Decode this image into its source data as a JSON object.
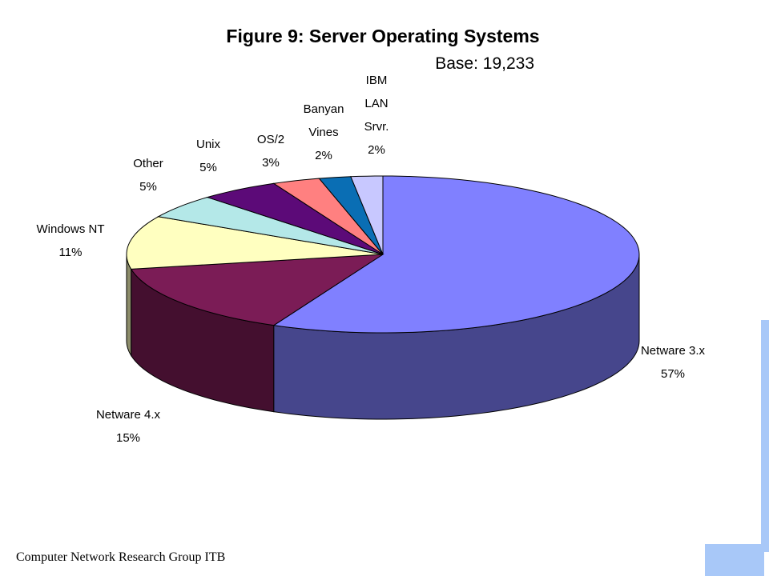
{
  "chart_data": {
    "type": "pie",
    "title": "Figure 9:  Server Operating Systems",
    "subtitle": "Base: 19,233",
    "categories": [
      "Netware 3.x",
      "Netware 4.x",
      "Windows NT",
      "Other",
      "Unix",
      "OS/2",
      "Banyan Vines",
      "IBM LAN Srvr."
    ],
    "values": [
      57,
      15,
      11,
      5,
      5,
      3,
      2,
      2
    ],
    "value_labels": [
      "57%",
      "15%",
      "11%",
      "5%",
      "5%",
      "3%",
      "2%",
      "2%"
    ],
    "colors": [
      "#8080ff",
      "#7b1c56",
      "#ffffc0",
      "#b4e8e8",
      "#5c0a78",
      "#ff8080",
      "#0a6eb4",
      "#c8c8ff"
    ],
    "footer": "Computer Network Research Group ITB"
  }
}
